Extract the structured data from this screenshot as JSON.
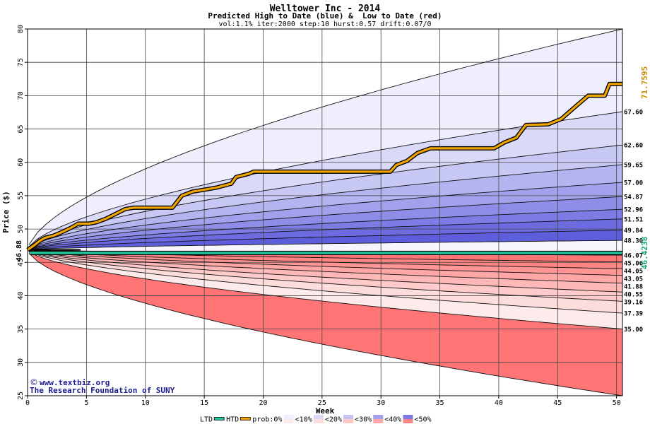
{
  "chart_data": {
    "type": "area",
    "title": "Welltower Inc - 2014",
    "subtitle": "Predicted High to Date (blue) &  Low to Date (red)",
    "params": "vol:1.1% iter:2000 step:10 hurst:0.57 drift:0.07/0",
    "xlabel": "Week",
    "ylabel": "Price ($)",
    "xlim": [
      0,
      50.5
    ],
    "ylim": [
      25,
      80
    ],
    "xticks": [
      0,
      5,
      10,
      15,
      20,
      25,
      30,
      35,
      40,
      45,
      50
    ],
    "yticks": [
      25,
      30,
      35,
      40,
      45,
      50,
      55,
      60,
      65,
      70,
      75,
      80
    ],
    "grid": true,
    "start_price": "46.88",
    "start_value": 46.88,
    "ltd_value": "46.4238",
    "ltd_level": 46.42,
    "htd_value": "71.7595",
    "htd_level": 71.76,
    "upper_labels": [
      "67.60",
      "62.60",
      "59.65",
      "57.00",
      "54.87",
      "52.96",
      "51.51",
      "49.84",
      "48.30"
    ],
    "upper_values": [
      67.6,
      62.6,
      59.65,
      57.0,
      54.87,
      52.96,
      51.51,
      49.84,
      48.3
    ],
    "lower_labels": [
      "46.07",
      "45.06",
      "44.05",
      "43.05",
      "41.88",
      "40.55",
      "39.16",
      "37.39",
      "35.00"
    ],
    "lower_values": [
      46.07,
      45.06,
      44.05,
      43.05,
      41.88,
      40.55,
      39.16,
      37.39,
      35.0
    ],
    "upper_outer_end": 80,
    "lower_outer_end": 25,
    "htd_series": [
      [
        0,
        46.88
      ],
      [
        0.6,
        47.6
      ],
      [
        1.0,
        48.2
      ],
      [
        1.5,
        48.7
      ],
      [
        2.2,
        49.0
      ],
      [
        3.0,
        49.6
      ],
      [
        3.8,
        50.3
      ],
      [
        4.3,
        50.8
      ],
      [
        5.2,
        50.8
      ],
      [
        5.8,
        51.0
      ],
      [
        6.6,
        51.5
      ],
      [
        7.4,
        52.2
      ],
      [
        8.3,
        53.0
      ],
      [
        9.0,
        53.2
      ],
      [
        12.3,
        53.2
      ],
      [
        13.1,
        55.0
      ],
      [
        14.0,
        55.6
      ],
      [
        15.0,
        55.9
      ],
      [
        16.0,
        56.2
      ],
      [
        17.3,
        56.8
      ],
      [
        17.7,
        57.8
      ],
      [
        18.8,
        58.3
      ],
      [
        19.2,
        58.6
      ],
      [
        30.8,
        58.6
      ],
      [
        31.3,
        59.6
      ],
      [
        32.2,
        60.2
      ],
      [
        33.1,
        61.4
      ],
      [
        34.2,
        62.1
      ],
      [
        39.6,
        62.1
      ],
      [
        40.5,
        63.0
      ],
      [
        41.5,
        63.7
      ],
      [
        42.3,
        65.6
      ],
      [
        44.2,
        65.7
      ],
      [
        45.3,
        66.5
      ],
      [
        46.6,
        68.5
      ],
      [
        47.6,
        70.0
      ],
      [
        49.0,
        70.0
      ],
      [
        49.4,
        71.76
      ],
      [
        50.5,
        71.76
      ]
    ],
    "legend": {
      "ltd_label": "LTD",
      "htd_label": "HTD",
      "prob_label": "prob:0%",
      "bins": [
        "<10%",
        "<20%",
        "<30%",
        "<40%",
        "<50%"
      ]
    },
    "colors": {
      "blue_bands": [
        "#eeeefc",
        "#dadaf8",
        "#c8c8f4",
        "#b4b4f0",
        "#a2a2ec",
        "#8e8ee8",
        "#7c7ce4",
        "#6c6ce0",
        "#5e5edc",
        "#5252d8"
      ],
      "red_bands": [
        "#ff7474",
        "#ff8484",
        "#ff9595",
        "#ffa6a6",
        "#ffb8b8",
        "#ffcaca",
        "#fddcdc",
        "#fdeaea"
      ],
      "htd": "#f0a500",
      "htd_label": "#c89000",
      "ltd": "#20c8a0",
      "ltd_label": "#10a070",
      "grid": "#444444",
      "text": "#000000",
      "footer_text": "#1a1a90"
    }
  },
  "footer": {
    "site": "www.textbiz.org",
    "org": "The Research Foundation of SUNY"
  }
}
